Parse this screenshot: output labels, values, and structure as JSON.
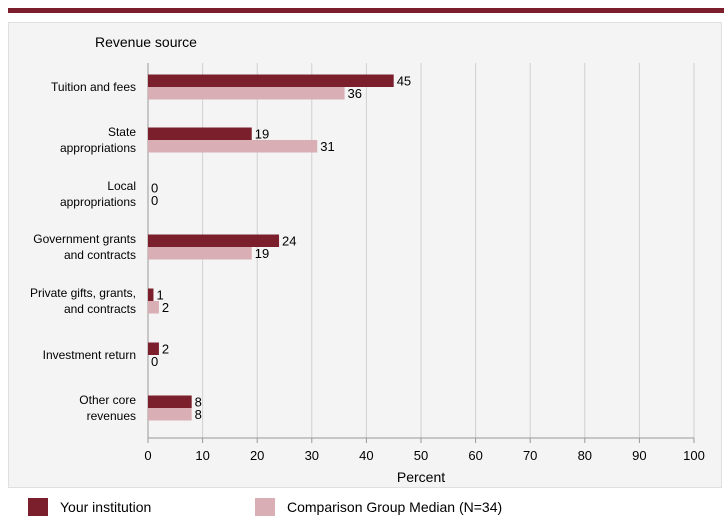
{
  "chart_data": {
    "type": "bar",
    "orientation": "horizontal",
    "category_axis_title": "Revenue source",
    "categories": [
      [
        "Tuition and fees"
      ],
      [
        "State",
        "appropriations"
      ],
      [
        "Local",
        "appropriations"
      ],
      [
        "Government grants",
        "and contracts"
      ],
      [
        "Private gifts, grants,",
        "and contracts"
      ],
      [
        "Investment return"
      ],
      [
        "Other core",
        "revenues"
      ]
    ],
    "series": [
      {
        "name": "Your institution",
        "color": "#7a1f2b",
        "values": [
          45,
          19,
          0,
          24,
          1,
          2,
          8
        ]
      },
      {
        "name": "Comparison Group Median (N=34)",
        "color": "#d9aeb5",
        "values": [
          36,
          31,
          0,
          19,
          2,
          0,
          8
        ]
      }
    ],
    "xlabel": "Percent",
    "xlim": [
      0,
      100
    ],
    "xticks": [
      0,
      10,
      20,
      30,
      40,
      50,
      60,
      70,
      80,
      90,
      100
    ],
    "grid": true,
    "legend_position": "bottom"
  }
}
